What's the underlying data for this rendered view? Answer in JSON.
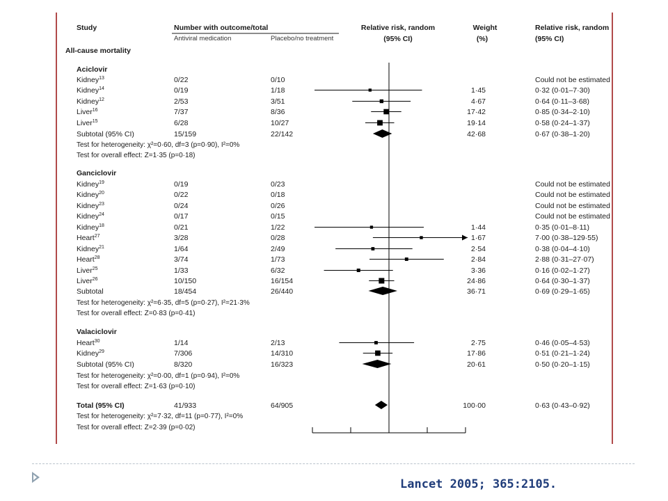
{
  "headers": {
    "study": "Study",
    "number": "Number with outcome/total",
    "antiviral": "Antiviral medication",
    "placebo": "Placebo/no treatment",
    "rr_plot": "Relative risk, random",
    "rr_plot_ci": "(95% CI)",
    "weight": "Weight",
    "weight_unit": "(%)",
    "rr_text": "Relative risk, random",
    "rr_text_ci": "(95% CI)"
  },
  "outcome_label": "All-cause mortality",
  "citation": "Lancet 2005; 365:2105.",
  "colors": {
    "border": "#b14a4a",
    "citation": "#1f3c7a",
    "footer_line": "#b9c3cc",
    "marker": "#000000"
  },
  "chart_data": {
    "type": "forest",
    "scale": "log",
    "reference_line": 1,
    "groups": [
      {
        "name": "Aciclovir",
        "studies": [
          {
            "label": "Kidney",
            "ref": "13",
            "antiviral": "0/22",
            "placebo": "0/10",
            "weight": "",
            "rr_text": "Could not be estimated",
            "rr": null,
            "low": null,
            "high": null
          },
          {
            "label": "Kidney",
            "ref": "14",
            "antiviral": "0/19",
            "placebo": "1/18",
            "weight": "1·45",
            "rr_text": "0·32 (0·01–7·30)",
            "rr": 0.32,
            "low": 0.01,
            "high": 7.3
          },
          {
            "label": "Kidney",
            "ref": "12",
            "antiviral": "2/53",
            "placebo": "3/51",
            "weight": "4·67",
            "rr_text": "0·64 (0·11–3·68)",
            "rr": 0.64,
            "low": 0.11,
            "high": 3.68
          },
          {
            "label": "Liver",
            "ref": "16",
            "antiviral": "7/37",
            "placebo": "8/36",
            "weight": "17·42",
            "rr_text": "0·85 (0·34–2·10)",
            "rr": 0.85,
            "low": 0.34,
            "high": 2.1
          },
          {
            "label": "Liver",
            "ref": "15",
            "antiviral": "6/28",
            "placebo": "10/27",
            "weight": "19·14",
            "rr_text": "0·58 (0·24–1·37)",
            "rr": 0.58,
            "low": 0.24,
            "high": 1.37
          }
        ],
        "subtotal": {
          "label": "Subtotal (95% CI)",
          "antiviral": "15/159",
          "placebo": "22/142",
          "weight": "42·68",
          "rr_text": "0·67 (0·38–1·20)",
          "rr": 0.67,
          "low": 0.38,
          "high": 1.2
        },
        "heterogeneity": "Test for heterogeneity: χ²=0·60, df=3 (p=0·90), I²=0%",
        "overall": "Test for overall effect: Z=1·35 (p=0·18)"
      },
      {
        "name": "Ganciclovir",
        "studies": [
          {
            "label": "Kidney",
            "ref": "19",
            "antiviral": "0/19",
            "placebo": "0/23",
            "weight": "",
            "rr_text": "Could not be estimated",
            "rr": null,
            "low": null,
            "high": null
          },
          {
            "label": "Kidney",
            "ref": "20",
            "antiviral": "0/22",
            "placebo": "0/18",
            "weight": "",
            "rr_text": "Could not be estimated",
            "rr": null,
            "low": null,
            "high": null
          },
          {
            "label": "Kidney",
            "ref": "23",
            "antiviral": "0/24",
            "placebo": "0/26",
            "weight": "",
            "rr_text": "Could not be estimated",
            "rr": null,
            "low": null,
            "high": null
          },
          {
            "label": "Kidney",
            "ref": "24",
            "antiviral": "0/17",
            "placebo": "0/15",
            "weight": "",
            "rr_text": "Could not be estimated",
            "rr": null,
            "low": null,
            "high": null
          },
          {
            "label": "Kidney",
            "ref": "18",
            "antiviral": "0/21",
            "placebo": "1/22",
            "weight": "1·44",
            "rr_text": "0·35 (0·01–8·11)",
            "rr": 0.35,
            "low": 0.01,
            "high": 8.11
          },
          {
            "label": "Heart",
            "ref": "27",
            "antiviral": "3/28",
            "placebo": "0/28",
            "weight": "1·67",
            "rr_text": "7·00 (0·38–129·55)",
            "rr": 7.0,
            "low": 0.38,
            "high": 129.55
          },
          {
            "label": "Kidney",
            "ref": "21",
            "antiviral": "1/64",
            "placebo": "2/49",
            "weight": "2·54",
            "rr_text": "0·38 (0·04–4·10)",
            "rr": 0.38,
            "low": 0.04,
            "high": 4.1
          },
          {
            "label": "Heart",
            "ref": "28",
            "antiviral": "3/74",
            "placebo": "1/73",
            "weight": "2·84",
            "rr_text": "2·88 (0·31–27·07)",
            "rr": 2.88,
            "low": 0.31,
            "high": 27.07
          },
          {
            "label": "Liver",
            "ref": "25",
            "antiviral": "1/33",
            "placebo": "6/32",
            "weight": "3·36",
            "rr_text": "0·16 (0·02–1·27)",
            "rr": 0.16,
            "low": 0.02,
            "high": 1.27
          },
          {
            "label": "Liver",
            "ref": "26",
            "antiviral": "10/150",
            "placebo": "16/154",
            "weight": "24·86",
            "rr_text": "0·64 (0·30–1·37)",
            "rr": 0.64,
            "low": 0.3,
            "high": 1.37
          }
        ],
        "subtotal": {
          "label": "Subtotal",
          "antiviral": "18/454",
          "placebo": "26/440",
          "weight": "36·71",
          "rr_text": "0·69 (0·29–1·65)",
          "rr": 0.69,
          "low": 0.29,
          "high": 1.65
        },
        "heterogeneity": "Test for heterogeneity: χ²=6·35, df=5 (p=0·27), I²=21·3%",
        "overall": "Test for overall effect: Z=0·83 (p=0·41)"
      },
      {
        "name": "Valaciclovir",
        "studies": [
          {
            "label": "Heart",
            "ref": "30",
            "antiviral": "1/14",
            "placebo": "2/13",
            "weight": "2·75",
            "rr_text": "0·46 (0·05–4·53)",
            "rr": 0.46,
            "low": 0.05,
            "high": 4.53
          },
          {
            "label": "Kidney",
            "ref": "29",
            "antiviral": "7/306",
            "placebo": "14/310",
            "weight": "17·86",
            "rr_text": "0·51 (0·21–1·24)",
            "rr": 0.51,
            "low": 0.21,
            "high": 1.24
          }
        ],
        "subtotal": {
          "label": "Subtotal (95% CI)",
          "antiviral": "8/320",
          "placebo": "16/323",
          "weight": "20·61",
          "rr_text": "0·50 (0·20–1·15)",
          "rr": 0.5,
          "low": 0.2,
          "high": 1.15
        },
        "heterogeneity": "Test for heterogeneity: χ²=0·00, df=1 (p=0·94), I²=0%",
        "overall": "Test for overall effect: Z=1·63 (p=0·10)"
      }
    ],
    "total": {
      "label": "Total (95% CI)",
      "antiviral": "41/933",
      "placebo": "64/905",
      "weight": "100·00",
      "rr_text": "0·63 (0·43–0·92)",
      "rr": 0.63,
      "low": 0.43,
      "high": 0.92,
      "heterogeneity": "Test for heterogeneity: χ²=7·32, df=11 (p=0·77), I²=0%",
      "overall": "Test for overall effect: Z=2·39 (p=0·02)"
    }
  }
}
